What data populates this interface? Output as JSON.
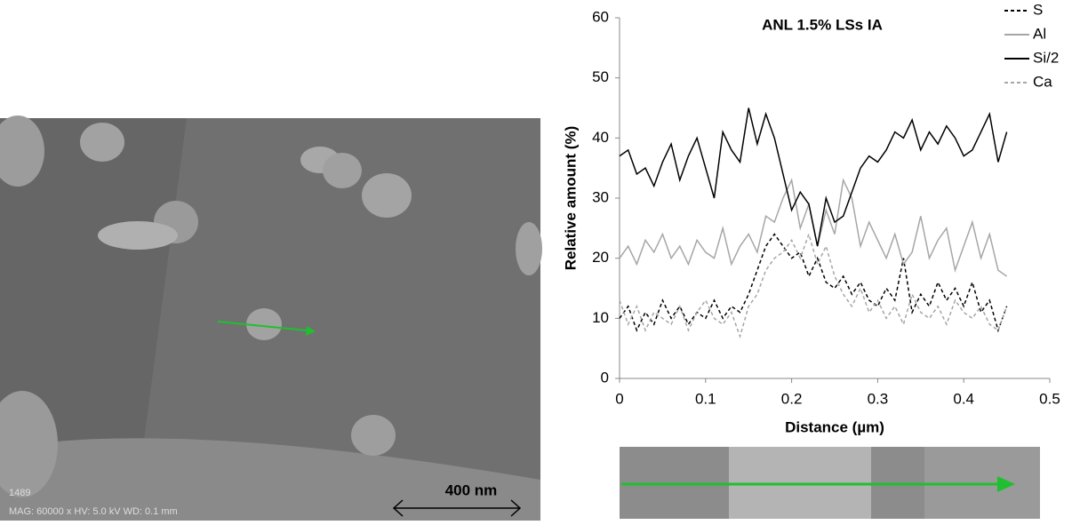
{
  "chart_data": {
    "type": "line",
    "title": "ANL 1.5% LSs IA",
    "x_label": "Distance (µm)",
    "y_label": "Relative amount (%)",
    "xlim": [
      0,
      0.5
    ],
    "xticks": [
      0,
      0.1,
      0.2,
      0.3,
      0.4,
      0.5
    ],
    "ylim": [
      0,
      60
    ],
    "yticks": [
      0,
      10,
      20,
      30,
      40,
      50,
      60
    ],
    "legend": "upper right",
    "grid": false,
    "x": [
      0,
      0.01,
      0.02,
      0.03,
      0.04,
      0.05,
      0.06,
      0.07,
      0.08,
      0.09,
      0.1,
      0.11,
      0.12,
      0.13,
      0.14,
      0.15,
      0.16,
      0.17,
      0.18,
      0.19,
      0.2,
      0.21,
      0.22,
      0.23,
      0.24,
      0.25,
      0.26,
      0.27,
      0.28,
      0.29,
      0.3,
      0.31,
      0.32,
      0.33,
      0.34,
      0.35,
      0.36,
      0.37,
      0.38,
      0.39,
      0.4,
      0.41,
      0.42,
      0.43,
      0.44,
      0.45
    ],
    "series": [
      {
        "name": "S",
        "color": "#000000",
        "linestyle": "dashed",
        "values": [
          10,
          12,
          8,
          11,
          9,
          13,
          10,
          12,
          9,
          11,
          10,
          13,
          10,
          12,
          11,
          14,
          18,
          22,
          24,
          22,
          20,
          21,
          17,
          20,
          16,
          15,
          17,
          14,
          16,
          13,
          12,
          15,
          13,
          20,
          11,
          14,
          12,
          16,
          13,
          15,
          12,
          16,
          11,
          13,
          8,
          12
        ]
      },
      {
        "name": "Al",
        "color": "#a6a6a6",
        "linestyle": "solid",
        "values": [
          20,
          22,
          19,
          23,
          21,
          24,
          20,
          22,
          19,
          23,
          21,
          20,
          25,
          19,
          22,
          24,
          21,
          27,
          26,
          30,
          33,
          25,
          29,
          22,
          28,
          24,
          33,
          30,
          22,
          26,
          23,
          20,
          24,
          19,
          21,
          27,
          20,
          23,
          25,
          18,
          22,
          26,
          20,
          24,
          18,
          17
        ]
      },
      {
        "name": "Si/2",
        "color": "#000000",
        "linestyle": "solid",
        "values": [
          37,
          38,
          34,
          35,
          32,
          36,
          39,
          33,
          37,
          40,
          35,
          30,
          41,
          38,
          36,
          45,
          39,
          44,
          40,
          34,
          28,
          31,
          29,
          22,
          30,
          26,
          27,
          31,
          35,
          37,
          36,
          38,
          41,
          40,
          43,
          38,
          41,
          39,
          42,
          40,
          37,
          38,
          41,
          44,
          36,
          41
        ]
      },
      {
        "name": "Ca",
        "color": "#a6a6a6",
        "linestyle": "dashed",
        "values": [
          13,
          9,
          12,
          8,
          11,
          10,
          9,
          12,
          8,
          11,
          13,
          10,
          9,
          11,
          7,
          12,
          14,
          18,
          20,
          21,
          23,
          20,
          24,
          19,
          22,
          17,
          14,
          12,
          15,
          11,
          13,
          10,
          12,
          9,
          14,
          11,
          10,
          12,
          9,
          13,
          11,
          10,
          12,
          9,
          8,
          12
        ]
      }
    ]
  },
  "image": {
    "id": "1489",
    "info": "MAG: 60000 x HV: 5.0 kV WD: 0.1 mm",
    "scale_bar": "400 nm"
  }
}
